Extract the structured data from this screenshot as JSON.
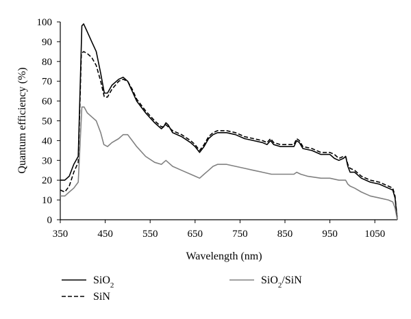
{
  "chart_data": {
    "type": "line",
    "title": "",
    "xlabel": "Wavelength (nm)",
    "ylabel": "Quantum efficiency (%)",
    "xlim": [
      350,
      1100
    ],
    "ylim": [
      0,
      100
    ],
    "x_ticks": [
      350,
      450,
      550,
      650,
      750,
      850,
      950,
      1050
    ],
    "y_ticks": [
      0,
      10,
      20,
      30,
      40,
      50,
      60,
      70,
      80,
      90,
      100
    ],
    "grid": false,
    "legend_position": "bottom",
    "series": [
      {
        "name": "SiO",
        "name_subscript": "2",
        "color": "#000000",
        "dash": "solid",
        "points": [
          [
            350,
            20
          ],
          [
            360,
            20
          ],
          [
            370,
            22
          ],
          [
            380,
            28
          ],
          [
            390,
            32
          ],
          [
            398,
            98
          ],
          [
            402,
            99
          ],
          [
            410,
            95
          ],
          [
            420,
            90
          ],
          [
            430,
            85
          ],
          [
            440,
            74
          ],
          [
            448,
            64
          ],
          [
            455,
            64
          ],
          [
            465,
            68
          ],
          [
            480,
            71
          ],
          [
            490,
            72
          ],
          [
            500,
            70
          ],
          [
            510,
            65
          ],
          [
            520,
            60
          ],
          [
            540,
            54
          ],
          [
            560,
            49
          ],
          [
            575,
            46
          ],
          [
            580,
            47
          ],
          [
            585,
            49
          ],
          [
            590,
            48
          ],
          [
            600,
            44
          ],
          [
            620,
            42
          ],
          [
            640,
            39
          ],
          [
            650,
            37
          ],
          [
            660,
            34
          ],
          [
            670,
            37
          ],
          [
            680,
            41
          ],
          [
            690,
            43
          ],
          [
            700,
            44
          ],
          [
            720,
            44
          ],
          [
            740,
            43
          ],
          [
            760,
            41
          ],
          [
            780,
            40
          ],
          [
            800,
            39
          ],
          [
            810,
            38
          ],
          [
            818,
            40
          ],
          [
            825,
            38
          ],
          [
            840,
            37
          ],
          [
            860,
            37
          ],
          [
            870,
            37
          ],
          [
            876,
            40
          ],
          [
            882,
            39
          ],
          [
            890,
            36
          ],
          [
            910,
            35
          ],
          [
            930,
            33
          ],
          [
            950,
            33
          ],
          [
            960,
            31
          ],
          [
            970,
            30
          ],
          [
            980,
            31
          ],
          [
            985,
            32
          ],
          [
            990,
            27
          ],
          [
            995,
            24
          ],
          [
            1005,
            24
          ],
          [
            1020,
            21
          ],
          [
            1040,
            19
          ],
          [
            1060,
            18
          ],
          [
            1080,
            16
          ],
          [
            1090,
            15
          ],
          [
            1095,
            11
          ],
          [
            1100,
            0
          ]
        ]
      },
      {
        "name": "SiN",
        "color": "#000000",
        "dash": "dashed",
        "points": [
          [
            350,
            15
          ],
          [
            360,
            14
          ],
          [
            370,
            17
          ],
          [
            380,
            24
          ],
          [
            390,
            29
          ],
          [
            397,
            84
          ],
          [
            402,
            85
          ],
          [
            410,
            84
          ],
          [
            420,
            82
          ],
          [
            430,
            78
          ],
          [
            440,
            70
          ],
          [
            448,
            62
          ],
          [
            455,
            62
          ],
          [
            465,
            66
          ],
          [
            480,
            70
          ],
          [
            490,
            71
          ],
          [
            500,
            70
          ],
          [
            510,
            66
          ],
          [
            520,
            61
          ],
          [
            540,
            55
          ],
          [
            560,
            50
          ],
          [
            575,
            47
          ],
          [
            580,
            47
          ],
          [
            585,
            48
          ],
          [
            590,
            47
          ],
          [
            600,
            45
          ],
          [
            620,
            43
          ],
          [
            640,
            40
          ],
          [
            650,
            38
          ],
          [
            660,
            35
          ],
          [
            670,
            38
          ],
          [
            680,
            42
          ],
          [
            690,
            44
          ],
          [
            700,
            45
          ],
          [
            720,
            45
          ],
          [
            740,
            44
          ],
          [
            760,
            42
          ],
          [
            780,
            41
          ],
          [
            800,
            40
          ],
          [
            810,
            39
          ],
          [
            818,
            41
          ],
          [
            825,
            39
          ],
          [
            840,
            38
          ],
          [
            860,
            38
          ],
          [
            870,
            38
          ],
          [
            876,
            41
          ],
          [
            882,
            40
          ],
          [
            890,
            37
          ],
          [
            910,
            36
          ],
          [
            930,
            34
          ],
          [
            950,
            34
          ],
          [
            960,
            33
          ],
          [
            970,
            31
          ],
          [
            980,
            32
          ],
          [
            985,
            32
          ],
          [
            990,
            28
          ],
          [
            995,
            26
          ],
          [
            1005,
            25
          ],
          [
            1020,
            22
          ],
          [
            1040,
            20
          ],
          [
            1060,
            19
          ],
          [
            1080,
            17
          ],
          [
            1090,
            16
          ],
          [
            1095,
            12
          ],
          [
            1100,
            0
          ]
        ]
      },
      {
        "name": "SiO",
        "name_subscript": "2",
        "name_suffix": "/SiN",
        "color": "#808080",
        "dash": "solid",
        "points": [
          [
            350,
            12
          ],
          [
            360,
            12
          ],
          [
            370,
            14
          ],
          [
            380,
            16
          ],
          [
            390,
            19
          ],
          [
            398,
            57
          ],
          [
            403,
            57
          ],
          [
            410,
            54
          ],
          [
            420,
            52
          ],
          [
            430,
            50
          ],
          [
            440,
            44
          ],
          [
            447,
            38
          ],
          [
            455,
            37
          ],
          [
            465,
            39
          ],
          [
            480,
            41
          ],
          [
            490,
            43
          ],
          [
            500,
            43
          ],
          [
            510,
            40
          ],
          [
            520,
            37
          ],
          [
            540,
            32
          ],
          [
            560,
            29
          ],
          [
            575,
            28
          ],
          [
            580,
            29
          ],
          [
            585,
            30
          ],
          [
            590,
            29
          ],
          [
            600,
            27
          ],
          [
            620,
            25
          ],
          [
            640,
            23
          ],
          [
            650,
            22
          ],
          [
            660,
            21
          ],
          [
            670,
            23
          ],
          [
            680,
            25
          ],
          [
            690,
            27
          ],
          [
            700,
            28
          ],
          [
            720,
            28
          ],
          [
            740,
            27
          ],
          [
            760,
            26
          ],
          [
            780,
            25
          ],
          [
            800,
            24
          ],
          [
            820,
            23
          ],
          [
            840,
            23
          ],
          [
            860,
            23
          ],
          [
            870,
            23
          ],
          [
            876,
            24
          ],
          [
            885,
            23
          ],
          [
            900,
            22
          ],
          [
            930,
            21
          ],
          [
            950,
            21
          ],
          [
            970,
            20
          ],
          [
            985,
            20
          ],
          [
            990,
            18
          ],
          [
            995,
            17
          ],
          [
            1005,
            16
          ],
          [
            1020,
            14
          ],
          [
            1040,
            12
          ],
          [
            1060,
            11
          ],
          [
            1080,
            10
          ],
          [
            1090,
            9
          ],
          [
            1095,
            6
          ],
          [
            1100,
            0
          ]
        ]
      }
    ]
  }
}
